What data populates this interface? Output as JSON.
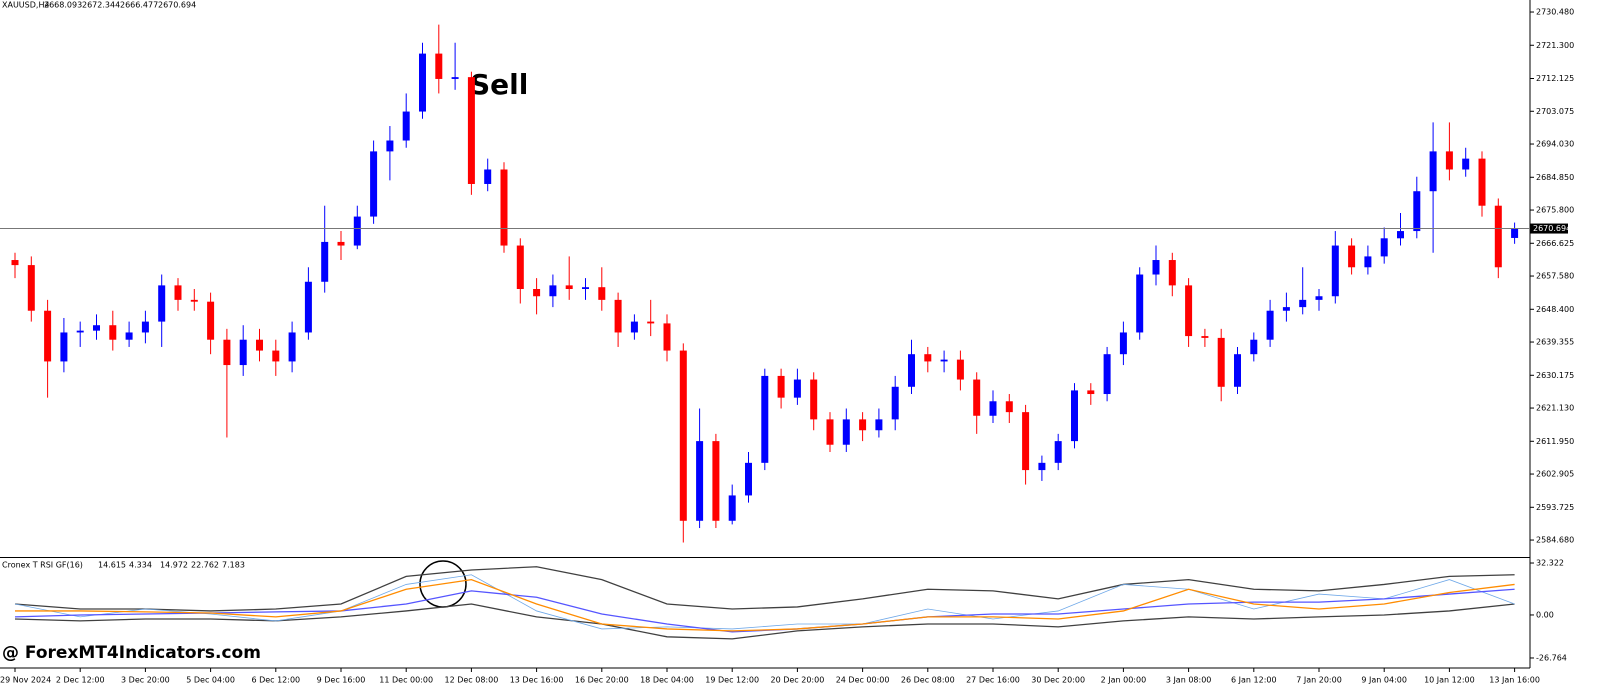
{
  "chart_data": [
    {
      "type": "candlestick",
      "symbol": "XAUUSD,H4",
      "annotation": "Sell",
      "up_color": "#0000ff",
      "down_color": "#ff0000",
      "price_line": true,
      "ylim": [
        2580.0,
        2733.8
      ],
      "yticks": [
        {
          "value": 2730.48,
          "label": "2730.480"
        },
        {
          "value": 2721.3,
          "label": "2721.300"
        },
        {
          "value": 2712.125,
          "label": "2712.125"
        },
        {
          "value": 2703.075,
          "label": "2703.075"
        },
        {
          "value": 2694.03,
          "label": "2694.030"
        },
        {
          "value": 2684.85,
          "label": "2684.850"
        },
        {
          "value": 2675.8,
          "label": "2675.800"
        },
        {
          "value": 2666.625,
          "label": "2666.625"
        },
        {
          "value": 2657.58,
          "label": "2657.580"
        },
        {
          "value": 2648.4,
          "label": "2648.400"
        },
        {
          "value": 2639.355,
          "label": "2639.355"
        },
        {
          "value": 2630.175,
          "label": "2630.175"
        },
        {
          "value": 2621.13,
          "label": "2621.130"
        },
        {
          "value": 2611.95,
          "label": "2611.950"
        },
        {
          "value": 2602.905,
          "label": "2602.905"
        },
        {
          "value": 2593.725,
          "label": "2593.725"
        },
        {
          "value": 2584.68,
          "label": "2584.680"
        }
      ],
      "open": [
        2662,
        2660.6,
        2648,
        2634,
        2642,
        2642.5,
        2644,
        2640,
        2642,
        2645,
        2655,
        2651,
        2650.5,
        2640,
        2633,
        2640,
        2637,
        2634,
        2642,
        2656,
        2667,
        2666,
        2674,
        2692,
        2695,
        2703,
        2719,
        2712,
        2712.5,
        2683,
        2687,
        2666,
        2654,
        2652,
        2655,
        2654,
        2654.5,
        2651,
        2642,
        2645,
        2644.5,
        2637,
        2590,
        2612,
        2590,
        2597,
        2606,
        2630,
        2624,
        2629,
        2618,
        2611,
        2618,
        2615,
        2618,
        2627,
        2636,
        2634,
        2634.5,
        2629,
        2619,
        2623,
        2620,
        2604,
        2606,
        2612,
        2626,
        2625,
        2636,
        2642,
        2658,
        2662,
        2655,
        2641,
        2640.5,
        2627,
        2636,
        2640,
        2648,
        2649,
        2651,
        2652,
        2666,
        2660,
        2663,
        2668,
        2670,
        2681,
        2692,
        2687,
        2690,
        2677,
        2668.093
      ],
      "high": [
        2664,
        2663,
        2651,
        2646,
        2645,
        2647,
        2648,
        2645,
        2648,
        2658,
        2657,
        2654,
        2653,
        2643,
        2644,
        2643,
        2640,
        2645,
        2660,
        2677,
        2670,
        2677,
        2695,
        2699,
        2708,
        2722,
        2727,
        2722,
        2714,
        2690,
        2689,
        2668,
        2657,
        2658,
        2663,
        2657,
        2660,
        2653,
        2647,
        2651,
        2647,
        2639,
        2621,
        2614,
        2600,
        2609,
        2632,
        2632,
        2632,
        2631,
        2620,
        2621,
        2620,
        2621,
        2630,
        2640,
        2638,
        2637,
        2637,
        2631,
        2626,
        2625,
        2622,
        2608,
        2614,
        2628,
        2628,
        2638,
        2645,
        2660,
        2666,
        2664,
        2657,
        2643,
        2643,
        2638,
        2642,
        2651,
        2653,
        2660,
        2654,
        2670,
        2668,
        2666,
        2671,
        2675,
        2685,
        2700,
        2700,
        2693,
        2692,
        2679,
        2672.344
      ],
      "low": [
        2657,
        2645,
        2624,
        2631,
        2638,
        2640,
        2637,
        2638,
        2639,
        2638,
        2648,
        2648,
        2636,
        2613,
        2630,
        2634,
        2630,
        2631,
        2640,
        2653,
        2662,
        2665,
        2672,
        2684,
        2693,
        2701,
        2708,
        2709,
        2680,
        2681,
        2664,
        2650,
        2647,
        2649,
        2651,
        2651,
        2648,
        2638,
        2640,
        2641,
        2634,
        2584,
        2588,
        2588,
        2589,
        2595,
        2604,
        2621,
        2622,
        2615,
        2609,
        2609,
        2612,
        2613,
        2615,
        2625,
        2631,
        2631,
        2626,
        2614,
        2617,
        2617,
        2600,
        2601,
        2604,
        2610,
        2622,
        2623,
        2633,
        2640,
        2655,
        2652,
        2638,
        2638,
        2623,
        2625,
        2634,
        2638,
        2645,
        2647,
        2648,
        2650,
        2658,
        2658,
        2661,
        2666,
        2668,
        2664,
        2684,
        2685,
        2674,
        2657,
        2666.477
      ],
      "close": [
        2660.6,
        2648,
        2634,
        2642,
        2642.5,
        2644,
        2640,
        2642,
        2645,
        2655,
        2651,
        2650.5,
        2640,
        2633,
        2640,
        2637,
        2634,
        2642,
        2656,
        2667,
        2666,
        2674,
        2692,
        2695,
        2703,
        2719,
        2712,
        2712.5,
        2683,
        2687,
        2666,
        2654,
        2652,
        2655,
        2654,
        2654.5,
        2651,
        2642,
        2645,
        2644.5,
        2637,
        2590,
        2612,
        2590,
        2597,
        2606,
        2630,
        2624,
        2629,
        2618,
        2611,
        2618,
        2615,
        2618,
        2627,
        2636,
        2634,
        2634.5,
        2629,
        2619,
        2623,
        2620,
        2604,
        2606,
        2612,
        2626,
        2625,
        2636,
        2642,
        2658,
        2662,
        2655,
        2641,
        2640.5,
        2627,
        2636,
        2640,
        2648,
        2649,
        2651,
        2652,
        2666,
        2660,
        2663,
        2668,
        2670,
        2681,
        2692,
        2687,
        2690,
        2677,
        2660,
        2670.694
      ]
    },
    {
      "type": "line",
      "title": "Cronex T RSI GF(16)",
      "indicator_values": [
        14.615,
        4.334,
        14.972,
        22.762,
        7.183
      ],
      "watermark": "@ ForexMT4Indicators.com",
      "ylim": [
        -33,
        34.2
      ],
      "yticks": [
        32.322,
        {
          "value": 0,
          "label": "0.00"
        },
        -26.764
      ],
      "categories": [
        "29 Nov 2024",
        "2 Dec 12:00",
        "3 Dec 20:00",
        "5 Dec 04:00",
        "6 Dec 12:00",
        "9 Dec 16:00",
        "11 Dec 00:00",
        "12 Dec 08:00",
        "13 Dec 16:00",
        "16 Dec 20:00",
        "18 Dec 04:00",
        "19 Dec 12:00",
        "20 Dec 20:00",
        "24 Dec 00:00",
        "26 Dec 08:00",
        "27 Dec 16:00",
        "30 Dec 20:00",
        "2 Jan 00:00",
        "3 Jan 08:00",
        "6 Jan 12:00",
        "7 Jan 20:00",
        "9 Jan 04:00",
        "10 Jan 12:00",
        "13 Jan 16:00"
      ],
      "series": [
        {
          "color": "#404040",
          "values": [
            6.8,
            3.7,
            3.7,
            2.5,
            3.7,
            6.8,
            24,
            28,
            30,
            22,
            6.8,
            3.7,
            5,
            10,
            16,
            15,
            10,
            19,
            22,
            16,
            15,
            19,
            24,
            25
          ]
        },
        {
          "color": "#404040",
          "values": [
            -2.5,
            -3.7,
            -2.5,
            -2.5,
            -3.7,
            -1.2,
            2.5,
            6.8,
            -1.2,
            -5.6,
            -13.6,
            -14.9,
            -9.9,
            -7.4,
            -5.6,
            -5.6,
            -7.4,
            -3.7,
            -1.2,
            -2.5,
            -1.2,
            0,
            2.5,
            6.8
          ]
        },
        {
          "color": "#6fa8e8",
          "values": [
            6.8,
            -1.2,
            3.7,
            0.6,
            -3.7,
            2.5,
            19,
            25,
            2.5,
            -8.7,
            -7.4,
            -8.7,
            -5.6,
            -5.6,
            3.7,
            -2.5,
            2.5,
            19,
            16,
            3.7,
            13,
            10,
            22,
            6.8
          ]
        },
        {
          "color": "#5555ff",
          "values": [
            -1.2,
            0,
            0.6,
            1.2,
            1.9,
            2.5,
            6.8,
            15,
            11,
            0.6,
            -5.6,
            -10.5,
            -8.7,
            -5.6,
            -1.2,
            0.6,
            0.6,
            3.7,
            6.8,
            8,
            8,
            10,
            13,
            16
          ]
        },
        {
          "color": "#ff8c00",
          "values": [
            2.5,
            2.5,
            1.9,
            1.2,
            -1.2,
            2.5,
            16,
            22,
            6.8,
            -5.6,
            -8.7,
            -9.9,
            -8.7,
            -5.6,
            -1.2,
            -1.2,
            -2.5,
            2.5,
            16,
            6.8,
            3.7,
            6.8,
            14,
            19
          ]
        }
      ]
    }
  ]
}
